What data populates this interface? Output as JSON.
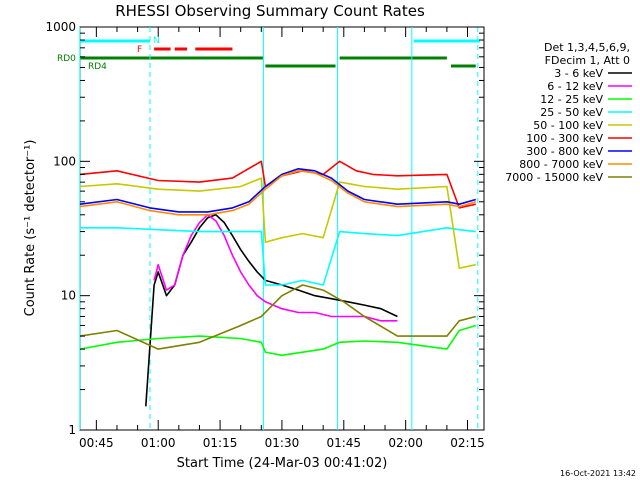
{
  "chart_data": {
    "type": "line",
    "title": "RHESSI Observing Summary Count Rates",
    "xlabel": "Start Time (24-Mar-03 00:41:02)",
    "ylabel": "Count Rate (s⁻¹ detector⁻¹)",
    "yscale": "log",
    "ylim": [
      1,
      1000
    ],
    "xlim": [
      "00:41:02",
      "02:19:00"
    ],
    "xticks": [
      "00:45",
      "01:00",
      "01:15",
      "01:30",
      "01:45",
      "02:00",
      "02:15"
    ],
    "yticks": [
      "1",
      "10",
      "100",
      "1000"
    ],
    "legend_header": [
      "Det 1,3,4,5,6,9,",
      "FDecim 1, Att 0"
    ],
    "legend_position": "right",
    "timestamp": "16-Oct-2021 13:42",
    "flag_labels": {
      "n": "N",
      "f": "F",
      "rd0": "RD0",
      "rd4": "RD4"
    },
    "flag_colors": {
      "n": "#00ffff",
      "f": "#ff0000",
      "rd0": "#008000",
      "rd4": "#008000"
    },
    "flags": {
      "n": [
        [
          "00:41:00",
          "00:58:00"
        ],
        [
          "02:02:00",
          "02:18:00"
        ]
      ],
      "f": [
        [
          "00:59:00",
          "01:03:00"
        ],
        [
          "01:04:00",
          "01:07:00"
        ],
        [
          "01:09:00",
          "01:18:00"
        ]
      ],
      "rd0": [
        [
          "00:41:00",
          "01:25:30"
        ],
        [
          "01:44:00",
          "02:10:00"
        ]
      ],
      "rd4": [
        [
          "01:26:00",
          "01:43:00"
        ],
        [
          "02:11:00",
          "02:17:00"
        ]
      ]
    },
    "eclipse_lines": [
      "00:41:00",
      "01:25:30",
      "01:43:30",
      "02:01:30"
    ],
    "saa_dashed_lines": [
      "00:58:00",
      "02:17:30"
    ],
    "series": [
      {
        "name": "3 - 6 keV",
        "color": "#000000",
        "x": [
          "00:57:00",
          "00:59:00",
          "01:00:00",
          "01:02:00",
          "01:04:00",
          "01:06:00",
          "01:08:00",
          "01:10:00",
          "01:12:00",
          "01:14:00",
          "01:16:00",
          "01:18:00",
          "01:20:00",
          "01:22:00",
          "01:24:00",
          "01:26:00",
          "01:30:00",
          "01:34:00",
          "01:38:00",
          "01:42:00",
          "01:46:00",
          "01:50:00",
          "01:54:00",
          "01:58:00"
        ],
        "y": [
          1.5,
          12,
          15,
          10,
          12,
          20,
          25,
          32,
          38,
          40,
          35,
          28,
          22,
          18,
          15,
          13,
          12,
          11,
          10,
          9.5,
          9,
          8.5,
          8,
          7
        ]
      },
      {
        "name": "6 - 12 keV",
        "color": "#ff00ff",
        "x": [
          "00:59:00",
          "01:00:00",
          "01:02:00",
          "01:04:00",
          "01:06:00",
          "01:08:00",
          "01:10:00",
          "01:12:00",
          "01:14:00",
          "01:16:00",
          "01:18:00",
          "01:20:00",
          "01:22:00",
          "01:24:00",
          "01:26:00",
          "01:30:00",
          "01:34:00",
          "01:38:00",
          "01:42:00",
          "01:46:00",
          "01:50:00",
          "01:54:00",
          "01:58:00"
        ],
        "y": [
          13,
          17,
          11,
          12,
          20,
          28,
          35,
          40,
          36,
          28,
          20,
          15,
          12,
          10,
          9,
          8,
          7.5,
          7.5,
          7,
          7,
          7,
          6.5,
          6.5
        ]
      },
      {
        "name": "12 - 25 keV",
        "color": "#00ff00",
        "x": [
          "00:41:00",
          "00:50:00",
          "01:00:00",
          "01:10:00",
          "01:20:00",
          "01:25:00",
          "01:26:00",
          "01:30:00",
          "01:40:00",
          "01:44:00",
          "01:50:00",
          "01:58:00",
          "02:10:00",
          "02:13:00",
          "02:17:00"
        ],
        "y": [
          4,
          4.5,
          4.8,
          5,
          4.8,
          4.5,
          3.8,
          3.6,
          4,
          4.5,
          4.6,
          4.5,
          4,
          5.5,
          6
        ]
      },
      {
        "name": "25 - 50 keV",
        "color": "#00ffff",
        "x": [
          "00:41:00",
          "00:50:00",
          "01:00:00",
          "01:10:00",
          "01:20:00",
          "01:25:00",
          "01:26:00",
          "01:30:00",
          "01:35:00",
          "01:40:00",
          "01:44:00",
          "01:50:00",
          "01:58:00",
          "02:10:00",
          "02:13:00",
          "02:17:00"
        ],
        "y": [
          32,
          32,
          31,
          30,
          30,
          30,
          12,
          12,
          13,
          12,
          30,
          29,
          28,
          32,
          31,
          30
        ]
      },
      {
        "name": "50 - 100 keV",
        "color": "#c8c800",
        "x": [
          "00:41:00",
          "00:50:00",
          "01:00:00",
          "01:10:00",
          "01:20:00",
          "01:25:00",
          "01:26:00",
          "01:30:00",
          "01:35:00",
          "01:40:00",
          "01:44:00",
          "01:50:00",
          "01:58:00",
          "02:10:00",
          "02:13:00",
          "02:17:00"
        ],
        "y": [
          65,
          68,
          62,
          60,
          65,
          75,
          25,
          27,
          29,
          27,
          70,
          65,
          62,
          65,
          16,
          17
        ]
      },
      {
        "name": "100 - 300 keV",
        "color": "#ff0000",
        "x": [
          "00:41:00",
          "00:50:00",
          "01:00:00",
          "01:10:00",
          "01:18:00",
          "01:25:00",
          "01:26:00",
          "01:30:00",
          "01:35:00",
          "01:40:00",
          "01:44:00",
          "01:48:00",
          "01:52:00",
          "01:58:00",
          "02:10:00",
          "02:13:00",
          "02:17:00"
        ],
        "y": [
          80,
          85,
          72,
          70,
          75,
          100,
          65,
          78,
          85,
          80,
          100,
          85,
          80,
          78,
          80,
          45,
          48
        ]
      },
      {
        "name": "300 - 800 keV",
        "color": "#0000ff",
        "x": [
          "00:41:00",
          "00:50:00",
          "00:58:00",
          "01:05:00",
          "01:12:00",
          "01:18:00",
          "01:22:00",
          "01:26:00",
          "01:30:00",
          "01:34:00",
          "01:38:00",
          "01:42:00",
          "01:46:00",
          "01:50:00",
          "01:58:00",
          "02:10:00",
          "02:13:00",
          "02:17:00"
        ],
        "y": [
          48,
          52,
          45,
          42,
          42,
          45,
          50,
          65,
          80,
          88,
          85,
          75,
          60,
          52,
          48,
          50,
          48,
          52
        ]
      },
      {
        "name": "800 - 7000 keV",
        "color": "#ff8c00",
        "x": [
          "00:41:00",
          "00:50:00",
          "00:58:00",
          "01:05:00",
          "01:12:00",
          "01:18:00",
          "01:22:00",
          "01:26:00",
          "01:30:00",
          "01:34:00",
          "01:38:00",
          "01:42:00",
          "01:46:00",
          "01:50:00",
          "01:58:00",
          "02:10:00",
          "02:13:00",
          "02:17:00"
        ],
        "y": [
          46,
          50,
          43,
          40,
          40,
          43,
          48,
          62,
          78,
          85,
          82,
          72,
          58,
          50,
          46,
          48,
          46,
          50
        ]
      },
      {
        "name": "7000 - 15000 keV",
        "color": "#808000",
        "x": [
          "00:41:00",
          "00:50:00",
          "01:00:00",
          "01:10:00",
          "01:20:00",
          "01:25:00",
          "01:30:00",
          "01:35:00",
          "01:40:00",
          "01:45:00",
          "01:50:00",
          "01:58:00",
          "02:10:00",
          "02:13:00",
          "02:17:00"
        ],
        "y": [
          5,
          5.5,
          4,
          4.5,
          6,
          7,
          10,
          12,
          11,
          9,
          7,
          5,
          5,
          6.5,
          7
        ]
      }
    ]
  }
}
